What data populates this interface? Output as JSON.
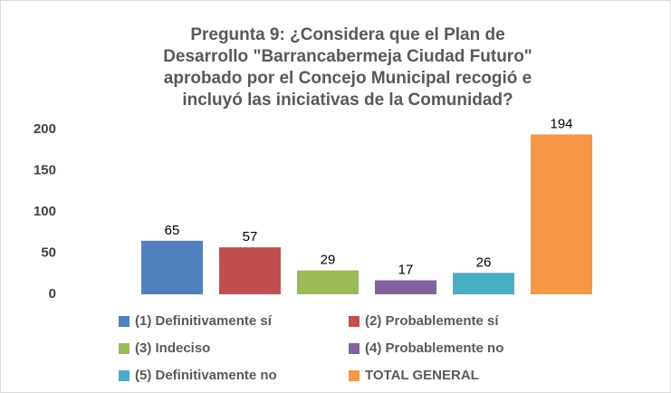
{
  "chart_data": {
    "type": "bar",
    "title": [
      "Pregunta 9: ¿Considera que el Plan de",
      "Desarrollo \"Barrancabermeja Ciudad Futuro\"",
      "aprobado por el Concejo Municipal recogió e",
      "incluyó las iniciativas de la Comunidad?"
    ],
    "categories": [
      null
    ],
    "series": [
      {
        "name": "(1)  Definitivamente sí",
        "color": "#4f81bd",
        "values": [
          65
        ]
      },
      {
        "name": "(2)  Probablemente sí",
        "color": "#c0504d",
        "values": [
          57
        ]
      },
      {
        "name": "(3)  Indeciso",
        "color": "#9bbb59",
        "values": [
          29
        ]
      },
      {
        "name": "(4)  Probablemente no",
        "color": "#8064a2",
        "values": [
          17
        ]
      },
      {
        "name": "(5)  Definitivamente no",
        "color": "#4bacc6",
        "values": [
          26
        ]
      },
      {
        "name": "TOTAL GENERAL",
        "color": "#f79646",
        "values": [
          194
        ]
      }
    ],
    "ylim": [
      0,
      200
    ],
    "yticks": [
      0,
      50,
      100,
      150,
      200
    ],
    "grid": false,
    "legend": "bottom"
  }
}
